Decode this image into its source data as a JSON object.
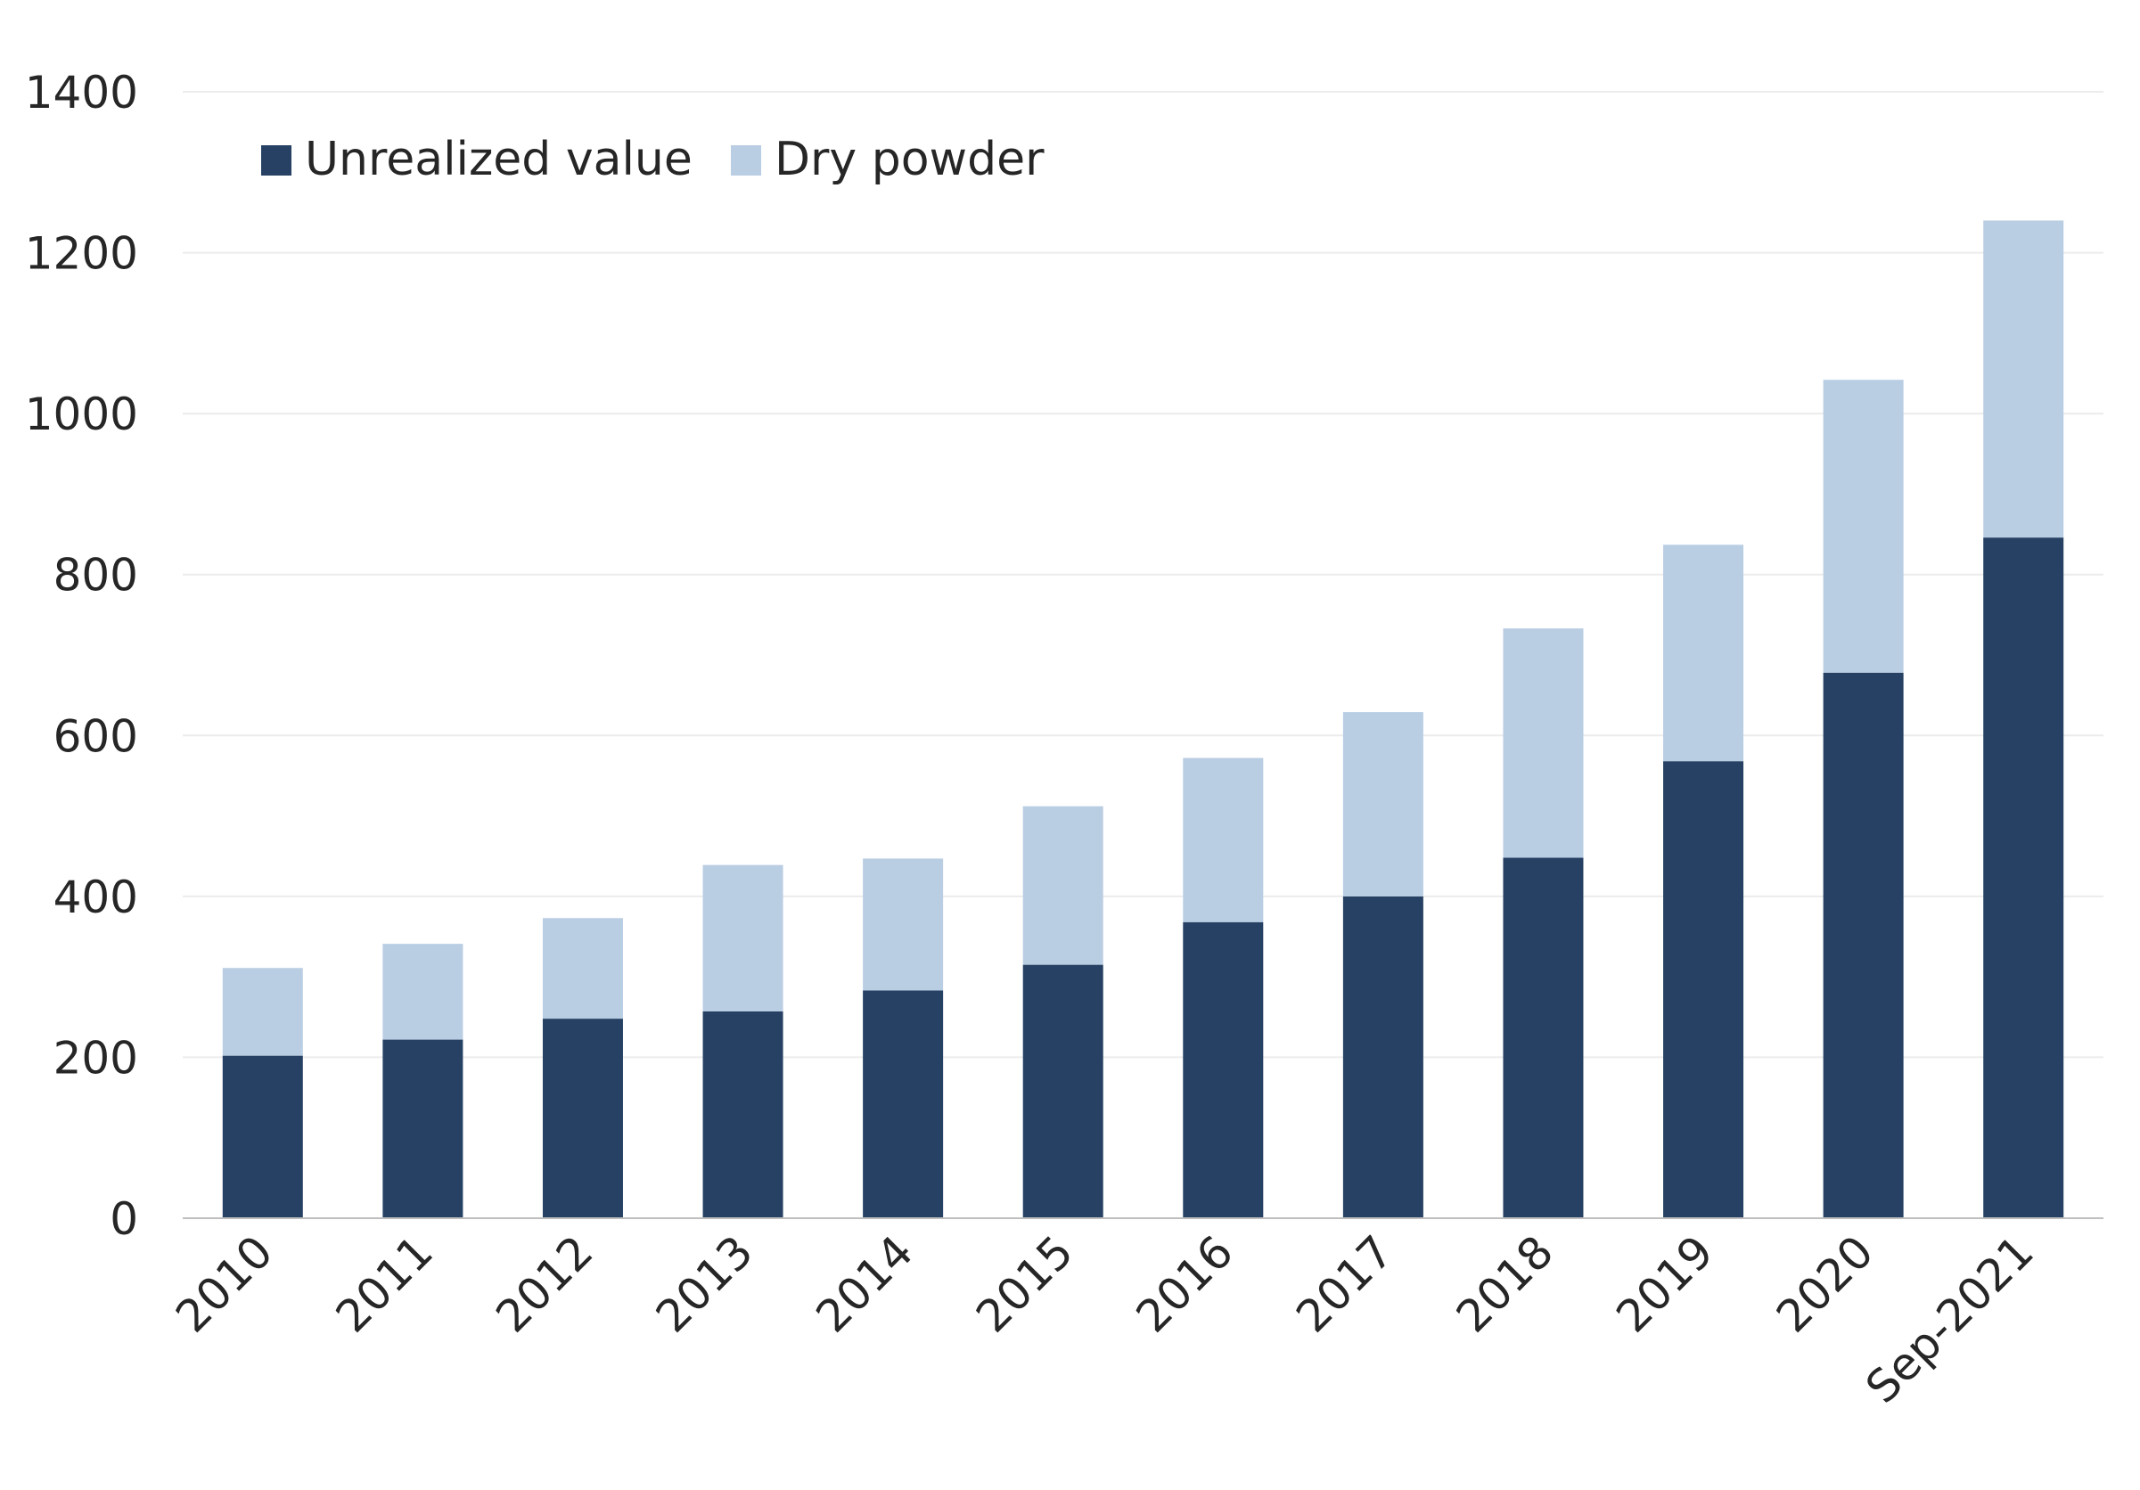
{
  "colors": {
    "unrealized": "#264163",
    "dry_powder": "#b9cde3",
    "grid": "#ececec",
    "axis": "#bfbfbf",
    "text": "#262626"
  },
  "chart_data": {
    "type": "bar",
    "stacked": true,
    "categories": [
      "2010",
      "2011",
      "2012",
      "2013",
      "2014",
      "2015",
      "2016",
      "2017",
      "2018",
      "2019",
      "2020",
      "Sep-2021"
    ],
    "series": [
      {
        "name": "Unrealized value",
        "color": "#264163",
        "values": [
          202,
          222,
          248,
          257,
          283,
          315,
          368,
          400,
          448,
          568,
          678,
          846
        ]
      },
      {
        "name": "Dry powder",
        "color": "#b9cde3",
        "values": [
          109,
          119,
          125,
          182,
          164,
          197,
          204,
          229,
          285,
          269,
          364,
          394
        ]
      }
    ],
    "title": "",
    "xlabel": "",
    "ylabel": "",
    "ylim": [
      0,
      1400
    ],
    "yticks": [
      0,
      200,
      400,
      600,
      800,
      1000,
      1200,
      1400
    ],
    "grid": true,
    "legend_position": "top-left",
    "x_tick_rotation": "-45deg"
  }
}
